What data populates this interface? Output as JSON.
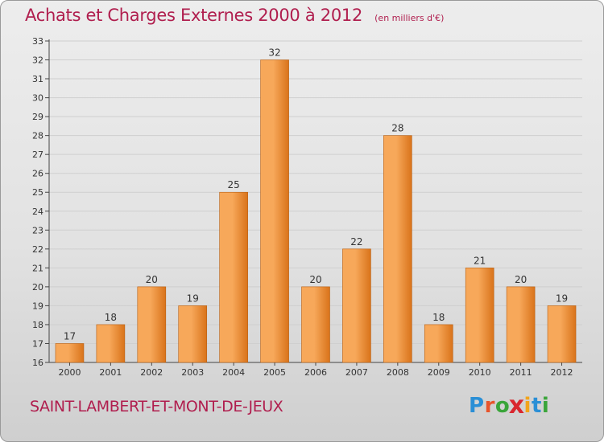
{
  "header": {
    "title": "Achats et Charges Externes 2000 à 2012",
    "unit": "(en milliers d'€)"
  },
  "footer": {
    "place": "SAINT-LAMBERT-ET-MONT-DE-JEUX",
    "logo_letters": [
      "P",
      "r",
      "o",
      "x",
      "i",
      "t",
      "i"
    ],
    "logo_colors": [
      "#2a8fd6",
      "#e8542b",
      "#3aa53a",
      "#d9262e",
      "#f2a41c",
      "#2a8fd6",
      "#3aa53a"
    ]
  },
  "colors": {
    "bar_light": "#f7a85a",
    "bar_dark": "#d9731a",
    "accent": "#b01e4e"
  },
  "chart_data": {
    "type": "bar",
    "title": "Achats et Charges Externes 2000 à 2012",
    "ylabel": "",
    "xlabel": "",
    "ylim": [
      16,
      33
    ],
    "grid": true,
    "categories": [
      "2000",
      "2001",
      "2002",
      "2003",
      "2004",
      "2005",
      "2006",
      "2007",
      "2008",
      "2009",
      "2010",
      "2011",
      "2012"
    ],
    "values": [
      17,
      18,
      20,
      19,
      25,
      32,
      20,
      22,
      28,
      18,
      21,
      20,
      19
    ],
    "data_labels": [
      "17",
      "18",
      "20",
      "19",
      "25",
      "32",
      "20",
      "22",
      "28",
      "18",
      "21",
      "20",
      "19"
    ],
    "yticks": [
      16,
      17,
      18,
      19,
      20,
      21,
      22,
      23,
      24,
      25,
      26,
      27,
      28,
      29,
      30,
      31,
      32,
      33
    ]
  }
}
